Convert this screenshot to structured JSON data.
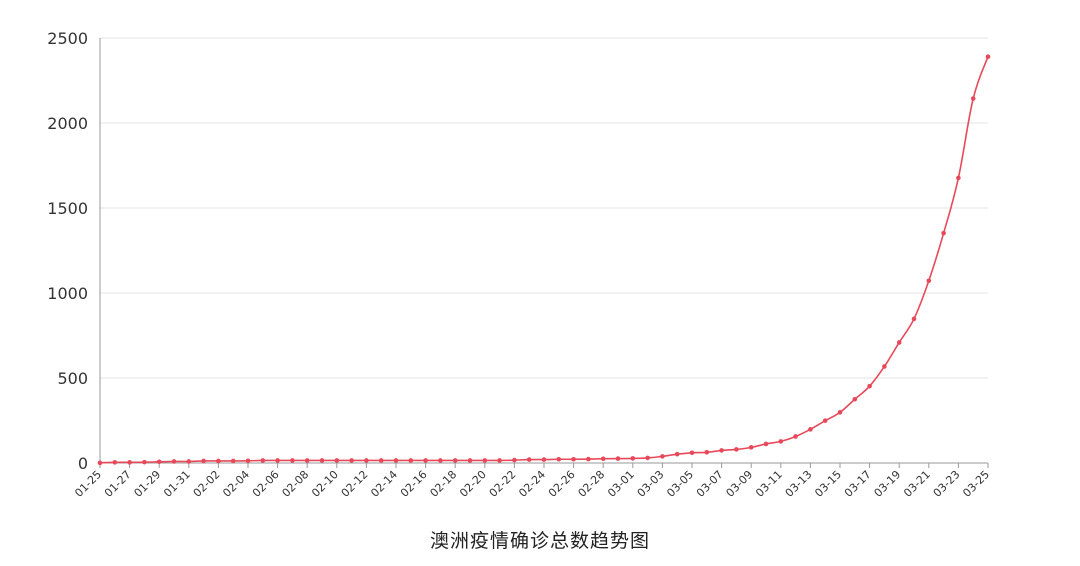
{
  "chart_data": {
    "type": "line",
    "title": "澳洲疫情确诊总数趋势图",
    "xlabel": "",
    "ylabel": "",
    "ylim": [
      0,
      2500
    ],
    "yticks": [
      0,
      500,
      1000,
      1500,
      2000,
      2500
    ],
    "grid": true,
    "legend": "none",
    "x": [
      "01-25",
      "01-26",
      "01-27",
      "01-28",
      "01-29",
      "01-30",
      "01-31",
      "02-01",
      "02-02",
      "02-03",
      "02-04",
      "02-05",
      "02-06",
      "02-07",
      "02-08",
      "02-09",
      "02-10",
      "02-11",
      "02-12",
      "02-13",
      "02-14",
      "02-15",
      "02-16",
      "02-17",
      "02-18",
      "02-19",
      "02-20",
      "02-21",
      "02-22",
      "02-23",
      "02-24",
      "02-25",
      "02-26",
      "02-27",
      "02-28",
      "02-29",
      "03-01",
      "03-02",
      "03-03",
      "03-04",
      "03-05",
      "03-06",
      "03-07",
      "03-08",
      "03-09",
      "03-10",
      "03-11",
      "03-12",
      "03-13",
      "03-14",
      "03-15",
      "03-16",
      "03-17",
      "03-18",
      "03-19",
      "03-20",
      "03-21",
      "03-22",
      "03-23",
      "03-24",
      "03-25"
    ],
    "x_tick_labels": [
      "01-25",
      "01-27",
      "01-29",
      "01-31",
      "02-02",
      "02-04",
      "02-06",
      "02-08",
      "02-10",
      "02-12",
      "02-14",
      "02-16",
      "02-18",
      "02-20",
      "02-22",
      "02-24",
      "02-26",
      "02-28",
      "03-01",
      "03-03",
      "03-05",
      "03-07",
      "03-09",
      "03-11",
      "03-13",
      "03-15",
      "03-17",
      "03-19",
      "03-21",
      "03-23",
      "03-25"
    ],
    "series": [
      {
        "values": [
          1,
          4,
          4,
          5,
          7,
          9,
          9,
          12,
          12,
          12,
          13,
          15,
          15,
          15,
          15,
          15,
          15,
          15,
          15,
          15,
          15,
          15,
          15,
          15,
          15,
          15,
          15,
          15,
          17,
          20,
          20,
          22,
          22,
          23,
          25,
          26,
          27,
          30,
          39,
          52,
          60,
          63,
          74,
          80,
          92,
          112,
          127,
          156,
          198,
          249,
          298,
          375,
          452,
          568,
          709,
          848,
          1072,
          1352,
          1677,
          2144,
          2390
        ],
        "color": "#e8495a"
      }
    ]
  }
}
